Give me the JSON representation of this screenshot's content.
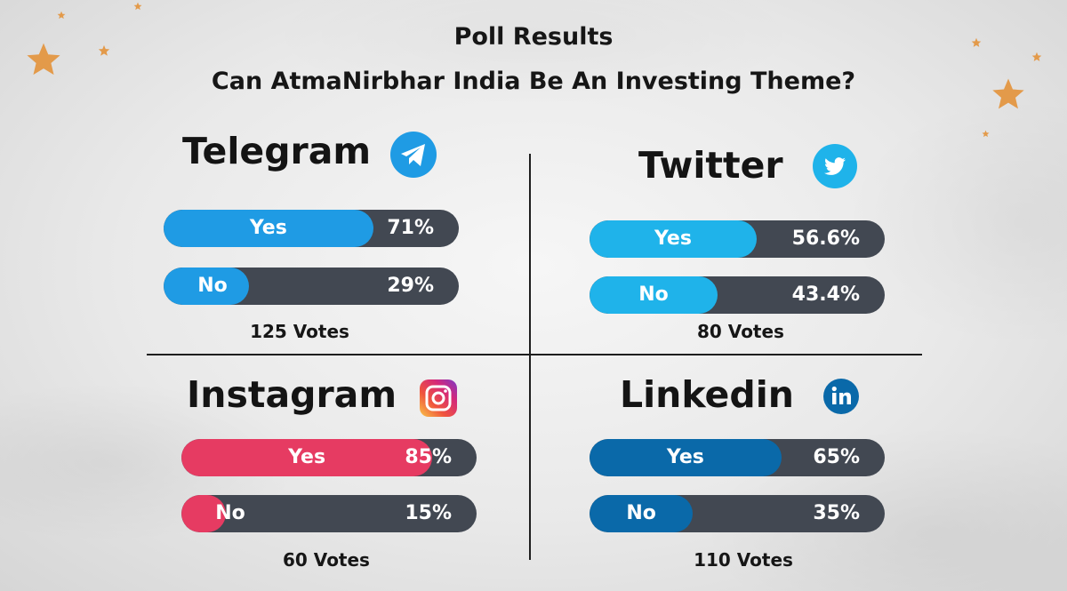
{
  "header": {
    "title": "Poll Results",
    "subtitle": "Can AtmaNirbhar India Be An Investing Theme?"
  },
  "colors": {
    "telegram": "#1f9be4",
    "twitter": "#1fb3ea",
    "instagram": "#e63b62",
    "linkedin": "#0a69a9",
    "track": "#424852",
    "stars": "#e39a4a"
  },
  "chart_data": [
    {
      "type": "bar",
      "platform": "Telegram",
      "icon": "telegram-icon",
      "categories": [
        "Yes",
        "No"
      ],
      "values": [
        71,
        29
      ],
      "value_labels": [
        "71%",
        "29%"
      ],
      "votes": "125 Votes"
    },
    {
      "type": "bar",
      "platform": "Twitter",
      "icon": "twitter-icon",
      "categories": [
        "Yes",
        "No"
      ],
      "values": [
        56.6,
        43.4
      ],
      "value_labels": [
        "56.6%",
        "43.4%"
      ],
      "votes": "80 Votes"
    },
    {
      "type": "bar",
      "platform": "Instagram",
      "icon": "instagram-icon",
      "categories": [
        "Yes",
        "No"
      ],
      "values": [
        85,
        15
      ],
      "value_labels": [
        "85%",
        "15%"
      ],
      "votes": "60 Votes"
    },
    {
      "type": "bar",
      "platform": "Linkedin",
      "icon": "linkedin-icon",
      "categories": [
        "Yes",
        "No"
      ],
      "values": [
        65,
        35
      ],
      "value_labels": [
        "65%",
        "35%"
      ],
      "votes": "110 Votes"
    }
  ]
}
